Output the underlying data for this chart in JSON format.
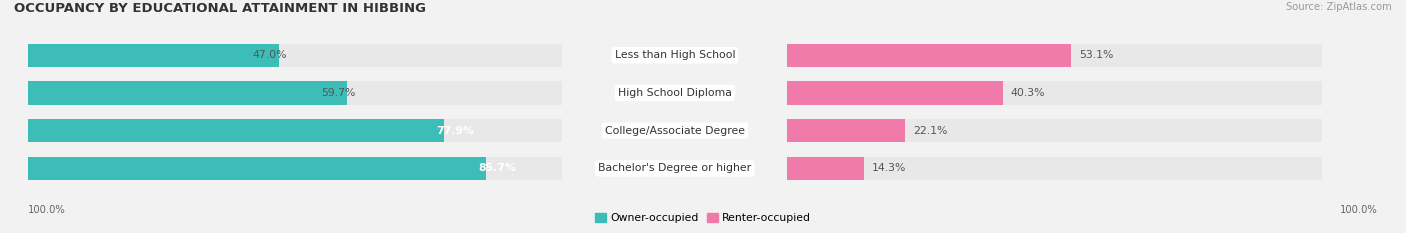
{
  "title": "OCCUPANCY BY EDUCATIONAL ATTAINMENT IN HIBBING",
  "source": "Source: ZipAtlas.com",
  "categories": [
    "Less than High School",
    "High School Diploma",
    "College/Associate Degree",
    "Bachelor's Degree or higher"
  ],
  "owner_pct": [
    47.0,
    59.7,
    77.9,
    85.7
  ],
  "renter_pct": [
    53.1,
    40.3,
    22.1,
    14.3
  ],
  "owner_color": "#3dbdb8",
  "renter_color": "#f07aaa",
  "bg_color": "#f2f2f2",
  "bar_bg_color": "#e8e8e8",
  "bar_height": 0.62,
  "bar_gap": 0.15,
  "title_fontsize": 9.5,
  "cat_fontsize": 7.8,
  "pct_fontsize": 7.8,
  "axis_label_fontsize": 7.2,
  "legend_fontsize": 7.8,
  "source_fontsize": 7.2
}
